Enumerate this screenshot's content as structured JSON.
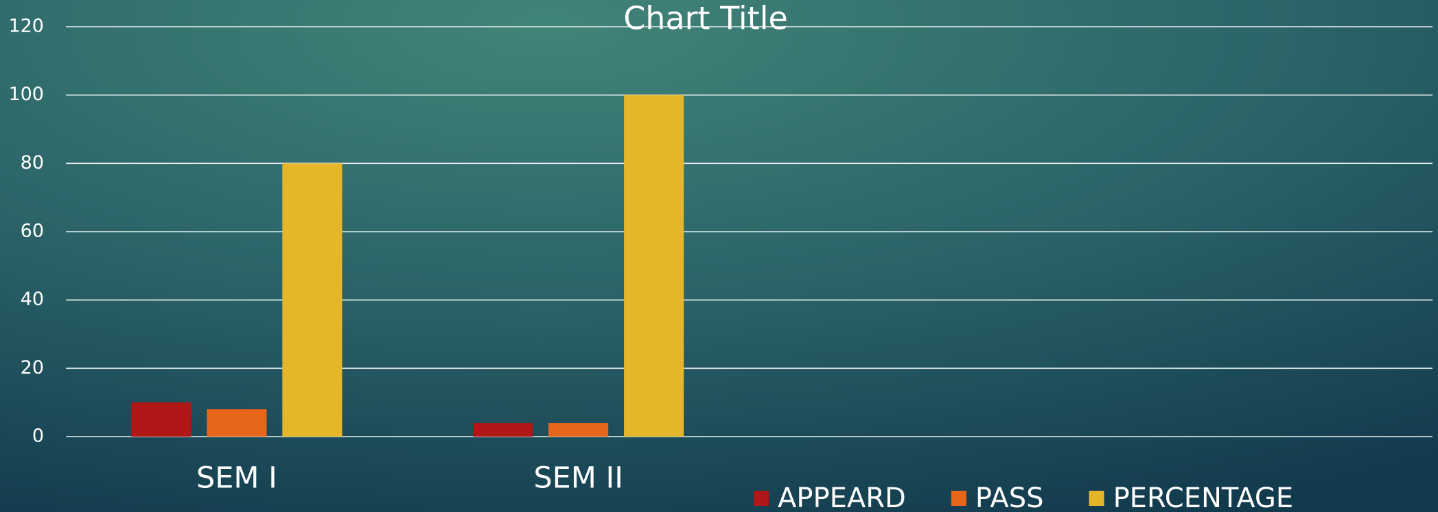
{
  "chart_data": {
    "type": "bar",
    "title": "Chart Title",
    "categories": [
      "SEM I",
      "SEM II",
      null,
      null
    ],
    "series": [
      {
        "name": "APPEARD",
        "color": "#b01717",
        "values": [
          10,
          4,
          null,
          null
        ]
      },
      {
        "name": "PASS",
        "color": "#e8661a",
        "values": [
          8,
          4,
          null,
          null
        ]
      },
      {
        "name": "PERCENTAGE",
        "color": "#e5b62a",
        "values": [
          80,
          100,
          null,
          null
        ]
      }
    ],
    "ylim": [
      0,
      120
    ],
    "yticks": [
      0,
      20,
      40,
      60,
      80,
      100,
      120
    ],
    "grid": true,
    "legend": "bottom"
  }
}
